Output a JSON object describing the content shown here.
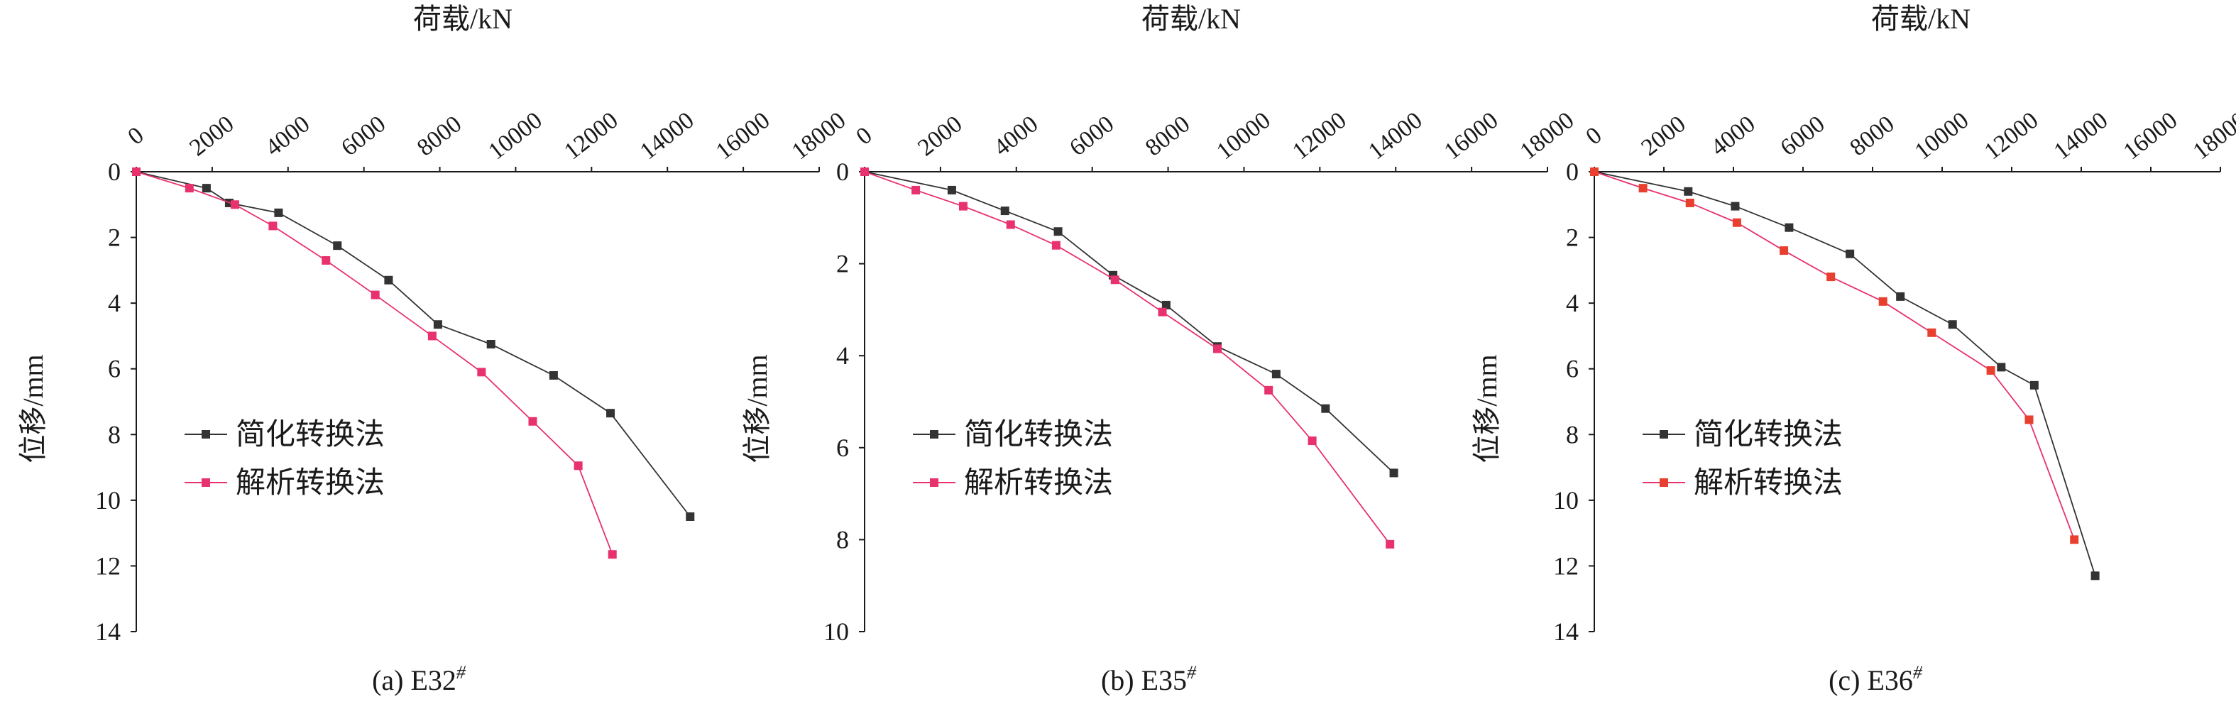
{
  "colors": {
    "simplified": "#333333",
    "analytical": "#e8326e",
    "analytical_marker_ab": "#e8326e",
    "analytical_marker_c": "#e8402e"
  },
  "chart_data": [
    {
      "type": "line",
      "panel_label": "(a) E32",
      "panel_sup": "#",
      "xlabel": "荷载/kN",
      "ylabel": "位移/mm",
      "xlim": [
        0,
        18000
      ],
      "ylim": [
        0,
        14
      ],
      "x_axis_position": "top",
      "y_inverted": true,
      "xticks": [
        "0",
        "2000",
        "4000",
        "6000",
        "8000",
        "10000",
        "12000",
        "14000",
        "16000",
        "18000"
      ],
      "yticks": [
        "0",
        "2",
        "4",
        "6",
        "8",
        "10",
        "12",
        "14"
      ],
      "grid": false,
      "legend": "left-middle",
      "series": [
        {
          "name": "简化转换法",
          "marker": "square",
          "x": [
            0,
            1850,
            2450,
            3750,
            5300,
            6650,
            7950,
            9350,
            11000,
            12500,
            14600
          ],
          "y": [
            0,
            0.5,
            0.95,
            1.25,
            2.25,
            3.3,
            4.65,
            5.25,
            6.2,
            7.35,
            10.5
          ]
        },
        {
          "name": "解析转换法",
          "marker": "square",
          "x": [
            0,
            1400,
            2600,
            3600,
            5000,
            6300,
            7800,
            9100,
            10450,
            11650,
            12550
          ],
          "y": [
            0,
            0.5,
            1.0,
            1.65,
            2.7,
            3.75,
            5.0,
            6.1,
            7.6,
            8.95,
            11.65
          ]
        }
      ]
    },
    {
      "type": "line",
      "panel_label": "(b) E35",
      "panel_sup": "#",
      "xlabel": "荷载/kN",
      "ylabel": "位移/mm",
      "xlim": [
        0,
        18000
      ],
      "ylim": [
        0,
        10
      ],
      "x_axis_position": "top",
      "y_inverted": true,
      "xticks": [
        "0",
        "2000",
        "4000",
        "6000",
        "8000",
        "10000",
        "12000",
        "14000",
        "16000",
        "18000"
      ],
      "yticks": [
        "0",
        "2",
        "4",
        "6",
        "8",
        "10"
      ],
      "grid": false,
      "legend": "left-middle",
      "series": [
        {
          "name": "简化转换法",
          "marker": "square",
          "x": [
            0,
            2300,
            3700,
            5100,
            6550,
            7950,
            9300,
            10850,
            12150,
            13950
          ],
          "y": [
            0,
            0.4,
            0.85,
            1.3,
            2.25,
            2.9,
            3.8,
            4.4,
            5.15,
            6.55
          ]
        },
        {
          "name": "解析转换法",
          "marker": "square",
          "x": [
            0,
            1350,
            2600,
            3850,
            5050,
            6600,
            7850,
            9300,
            10650,
            11800,
            13850
          ],
          "y": [
            0,
            0.4,
            0.75,
            1.15,
            1.6,
            2.35,
            3.05,
            3.85,
            4.75,
            5.85,
            8.1
          ]
        }
      ]
    },
    {
      "type": "line",
      "panel_label": "(c) E36",
      "panel_sup": "#",
      "xlabel": "荷载/kN",
      "ylabel": "位移/mm",
      "xlim": [
        0,
        18000
      ],
      "ylim": [
        0,
        14
      ],
      "x_axis_position": "top",
      "y_inverted": true,
      "xticks": [
        "0",
        "2000",
        "4000",
        "6000",
        "8000",
        "10000",
        "12000",
        "14000",
        "16000",
        "18000"
      ],
      "yticks": [
        "0",
        "2",
        "4",
        "6",
        "8",
        "10",
        "12",
        "14"
      ],
      "grid": false,
      "legend": "left-middle",
      "series": [
        {
          "name": "简化转换法",
          "marker": "square",
          "x": [
            0,
            2700,
            4050,
            5600,
            7350,
            8800,
            10300,
            11700,
            12650,
            14400
          ],
          "y": [
            0,
            0.6,
            1.05,
            1.7,
            2.5,
            3.8,
            4.65,
            5.95,
            6.5,
            12.3
          ]
        },
        {
          "name": "解析转换法",
          "marker": "square",
          "x": [
            0,
            1400,
            2750,
            4100,
            5450,
            6800,
            8300,
            9700,
            11400,
            12500,
            13800
          ],
          "y": [
            0,
            0.5,
            0.95,
            1.55,
            2.4,
            3.2,
            3.95,
            4.9,
            6.05,
            7.55,
            11.2
          ]
        }
      ]
    }
  ]
}
